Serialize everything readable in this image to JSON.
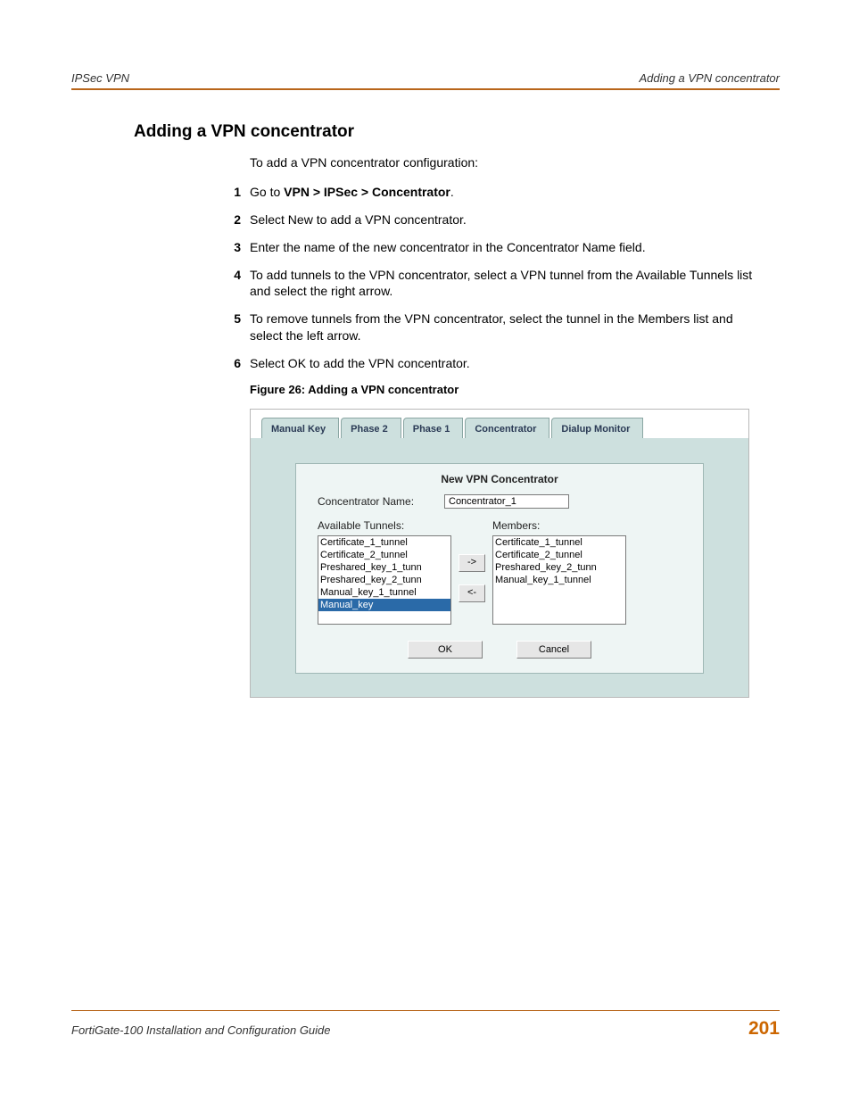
{
  "colors": {
    "accent_orange": "#cc6600",
    "rule_orange": "#b8651a",
    "tab_bg": "#cde0de",
    "panel_bg": "#eef5f4",
    "list_selected_bg": "#2a6aa8"
  },
  "header": {
    "left": "IPSec VPN",
    "right": "Adding a VPN concentrator"
  },
  "section_title": "Adding a VPN concentrator",
  "intro": "To add a VPN concentrator configuration:",
  "steps": {
    "s1_pre": "Go to ",
    "s1_bold": "VPN > IPSec > Concentrator",
    "s1_post": ".",
    "s2": "Select New to add a VPN concentrator.",
    "s3": "Enter the name of the new concentrator in the Concentrator Name field.",
    "s4": "To add tunnels to the VPN concentrator, select a VPN tunnel from the Available Tunnels list and select the right arrow.",
    "s5": "To remove tunnels from the VPN concentrator, select the tunnel in the Members list and select the left arrow.",
    "s6": "Select OK to add the VPN concentrator."
  },
  "figure_caption": "Figure 26: Adding a VPN concentrator",
  "ui": {
    "tabs": {
      "t0": "Manual Key",
      "t1": "Phase 2",
      "t2": "Phase 1",
      "t3": "Concentrator",
      "t4": "Dialup Monitor"
    },
    "panel_title": "New VPN Concentrator",
    "name_label": "Concentrator Name:",
    "name_value": "Concentrator_1",
    "available_label": "Available Tunnels:",
    "members_label": "Members:",
    "available": {
      "a0": "Certificate_1_tunnel",
      "a1": "Certificate_2_tunnel",
      "a2": "Preshared_key_1_tunn",
      "a3": "Preshared_key_2_tunn",
      "a4": "Manual_key_1_tunnel",
      "a5": "Manual_key"
    },
    "members": {
      "m0": "Certificate_1_tunnel",
      "m1": "Certificate_2_tunnel",
      "m2": "Preshared_key_2_tunn",
      "m3": "Manual_key_1_tunnel"
    },
    "arrow_right": "->",
    "arrow_left": "<-",
    "ok": "OK",
    "cancel": "Cancel"
  },
  "footer": {
    "left": "FortiGate-100 Installation and Configuration Guide",
    "page": "201"
  }
}
